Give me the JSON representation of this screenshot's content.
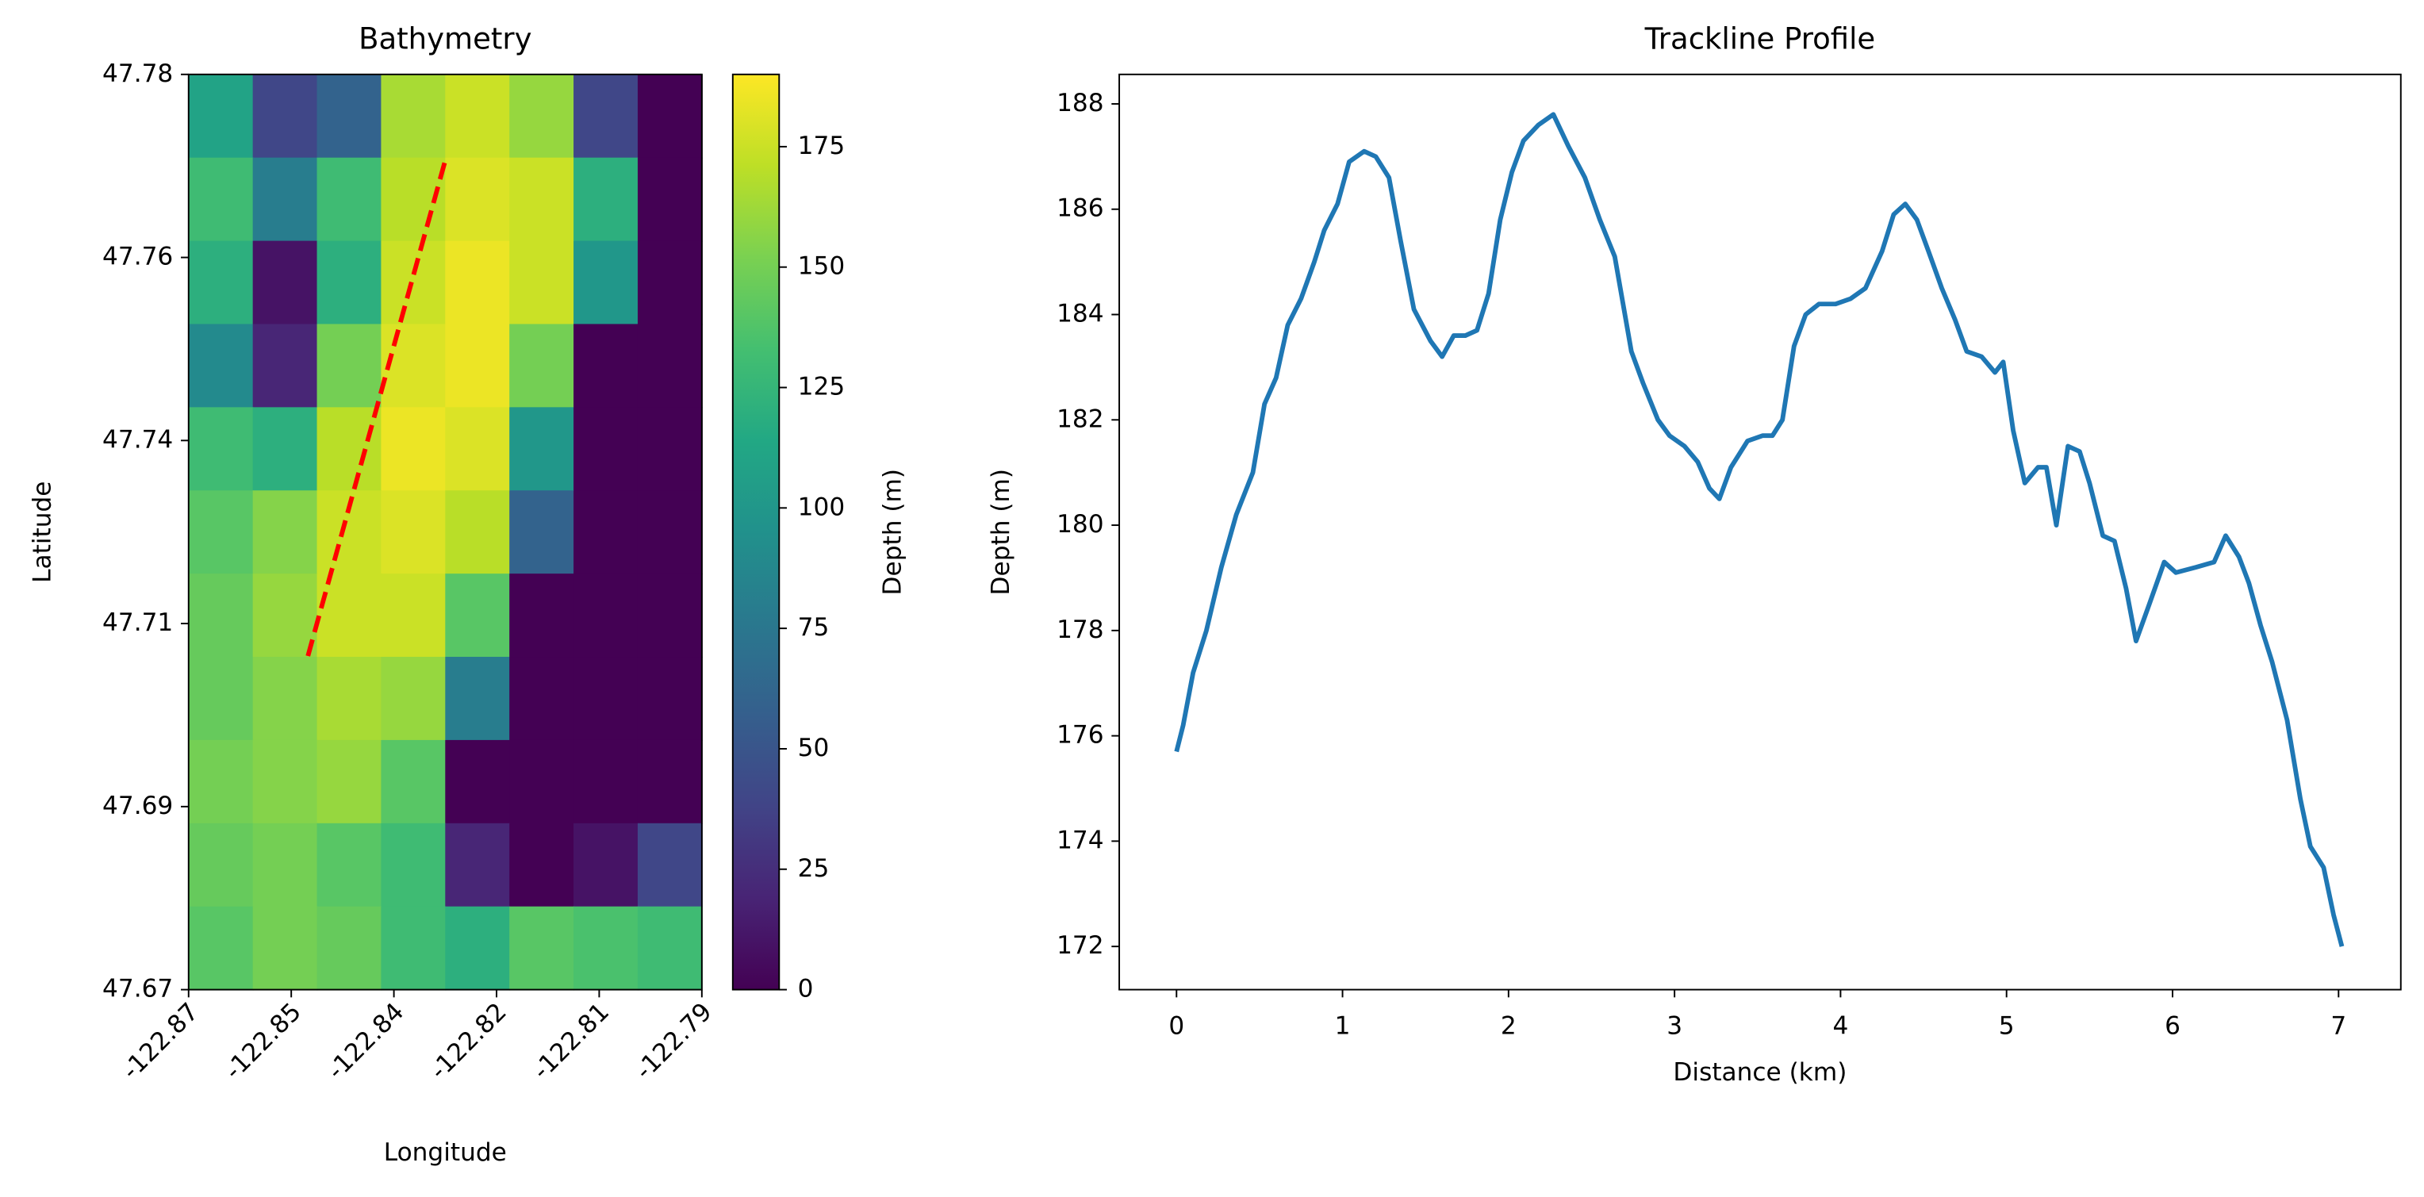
{
  "chart_data": [
    {
      "type": "heatmap",
      "title": "Bathymetry",
      "x_label": "Longitude",
      "y_label": "Latitude",
      "x": [
        -122.865,
        -122.855,
        -122.845,
        -122.835,
        -122.825,
        -122.815,
        -122.805,
        -122.795
      ],
      "y": [
        47.775,
        47.765,
        47.755,
        47.745,
        47.735,
        47.725,
        47.715,
        47.705,
        47.695,
        47.685,
        47.675
      ],
      "values": [
        [
          110,
          40,
          60,
          165,
          175,
          160,
          40,
          0
        ],
        [
          130,
          80,
          130,
          170,
          180,
          175,
          120,
          0
        ],
        [
          120,
          10,
          120,
          175,
          185,
          175,
          100,
          0
        ],
        [
          90,
          20,
          150,
          180,
          185,
          150,
          0,
          0
        ],
        [
          130,
          120,
          170,
          185,
          180,
          100,
          0,
          0
        ],
        [
          140,
          155,
          175,
          180,
          170,
          60,
          0,
          0
        ],
        [
          145,
          160,
          175,
          175,
          140,
          0,
          0,
          0
        ],
        [
          145,
          155,
          165,
          160,
          80,
          0,
          0,
          0
        ],
        [
          150,
          155,
          160,
          140,
          0,
          0,
          0,
          0
        ],
        [
          145,
          150,
          140,
          130,
          20,
          0,
          10,
          40
        ],
        [
          140,
          150,
          145,
          130,
          120,
          140,
          135,
          130
        ]
      ],
      "xlim": [
        -122.87,
        -122.79
      ],
      "ylim": [
        47.67,
        47.78
      ],
      "xticks": [
        -122.87,
        {
          "value": -122.854,
          "label": "-122.85"
        },
        {
          "value": -122.838,
          "label": "-122.84"
        },
        {
          "value": -122.822,
          "label": "-122.82"
        },
        {
          "value": -122.806,
          "label": "-122.81"
        },
        -122.79
      ],
      "yticks": [
        47.67,
        {
          "value": 47.692,
          "label": "47.69"
        },
        {
          "value": 47.714,
          "label": "47.71"
        },
        {
          "value": 47.736,
          "label": "47.74"
        },
        {
          "value": 47.758,
          "label": "47.76"
        },
        47.78
      ],
      "colormap": "viridis",
      "colorbar": {
        "label": "Depth (m)",
        "lim": [
          0,
          190
        ],
        "ticks": [
          0,
          25,
          50,
          75,
          100,
          125,
          150,
          175
        ]
      },
      "track": {
        "color": "#ff0000",
        "style": "dashed",
        "x": [
          -122.8514,
          -122.8298
        ],
        "y": [
          47.7101,
          47.7702
        ]
      }
    },
    {
      "type": "line",
      "title": "Trackline Profile",
      "x_label": "Distance (km)",
      "y_label": "Depth (m)",
      "color": "#1f77b4",
      "x": [
        0,
        0.04,
        0.1,
        0.18,
        0.27,
        0.36,
        0.46,
        0.53,
        0.6,
        0.67,
        0.75,
        0.83,
        0.89,
        0.97,
        1.04,
        1.13,
        1.2,
        1.28,
        1.35,
        1.43,
        1.53,
        1.6,
        1.67,
        1.74,
        1.81,
        1.88,
        1.95,
        2.02,
        2.09,
        2.18,
        2.27,
        2.36,
        2.46,
        2.55,
        2.64,
        2.74,
        2.81,
        2.9,
        2.97,
        3.06,
        3.14,
        3.21,
        3.27,
        3.34,
        3.44,
        3.53,
        3.59,
        3.65,
        3.72,
        3.79,
        3.87,
        3.97,
        4.06,
        4.15,
        4.25,
        4.32,
        4.39,
        4.46,
        4.53,
        4.61,
        4.69,
        4.76,
        4.85,
        4.93,
        4.98,
        5.04,
        5.11,
        5.19,
        5.24,
        5.3,
        5.37,
        5.44,
        5.5,
        5.58,
        5.65,
        5.72,
        5.78,
        5.86,
        5.95,
        6.02,
        6.14,
        6.25,
        6.32,
        6.4,
        6.46,
        6.53,
        6.6,
        6.69,
        6.77,
        6.83,
        6.91,
        6.97,
        7.02
      ],
      "values": [
        175.7,
        176.2,
        177.2,
        178.0,
        179.2,
        180.2,
        181.0,
        182.3,
        182.8,
        183.8,
        184.3,
        185.0,
        185.6,
        186.1,
        186.9,
        187.1,
        187.0,
        186.6,
        185.4,
        184.1,
        183.5,
        183.2,
        183.6,
        183.6,
        183.7,
        184.4,
        185.8,
        186.7,
        187.3,
        187.6,
        187.8,
        187.2,
        186.6,
        185.8,
        185.1,
        183.3,
        182.7,
        182.0,
        181.7,
        181.5,
        181.2,
        180.7,
        180.5,
        181.1,
        181.6,
        181.7,
        181.7,
        182.0,
        183.4,
        184.0,
        184.2,
        184.2,
        184.3,
        184.5,
        185.2,
        185.9,
        186.1,
        185.8,
        185.2,
        184.5,
        183.9,
        183.3,
        183.2,
        182.9,
        183.1,
        181.8,
        180.8,
        181.1,
        181.1,
        180.0,
        181.5,
        181.4,
        180.8,
        179.8,
        179.7,
        178.8,
        177.8,
        178.5,
        179.3,
        179.1,
        179.2,
        179.3,
        179.8,
        179.4,
        178.9,
        178.1,
        177.4,
        176.3,
        174.8,
        173.9,
        173.5,
        172.6,
        172.0
      ],
      "xlim": [
        -0.345,
        7.375
      ],
      "ylim": [
        171.18,
        188.56
      ],
      "xticks": [
        0,
        1,
        2,
        3,
        4,
        5,
        6,
        7
      ],
      "yticks": [
        172,
        174,
        176,
        178,
        180,
        182,
        184,
        186,
        188
      ]
    }
  ]
}
